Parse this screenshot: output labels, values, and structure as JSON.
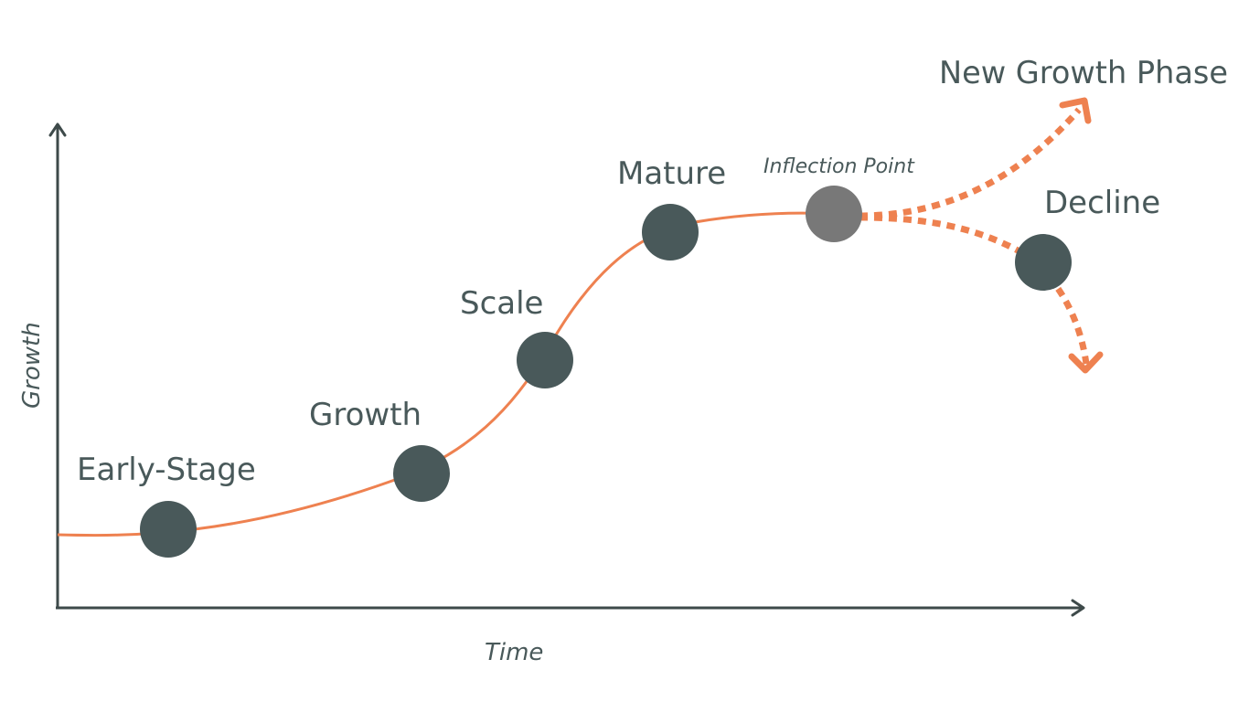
{
  "colors": {
    "curve": "#ee8150",
    "stage_dot": "#49595a",
    "inflection_dot": "#787878",
    "axis": "#3e4a4a",
    "text": "#49595a"
  },
  "axes": {
    "x_label": "Time",
    "y_label": "Growth"
  },
  "stages": {
    "early_stage": "Early-Stage",
    "growth": "Growth",
    "scale": "Scale",
    "mature": "Mature",
    "inflection_point": "Inflection Point",
    "decline": "Decline",
    "new_growth_phase": "New Growth Phase"
  }
}
